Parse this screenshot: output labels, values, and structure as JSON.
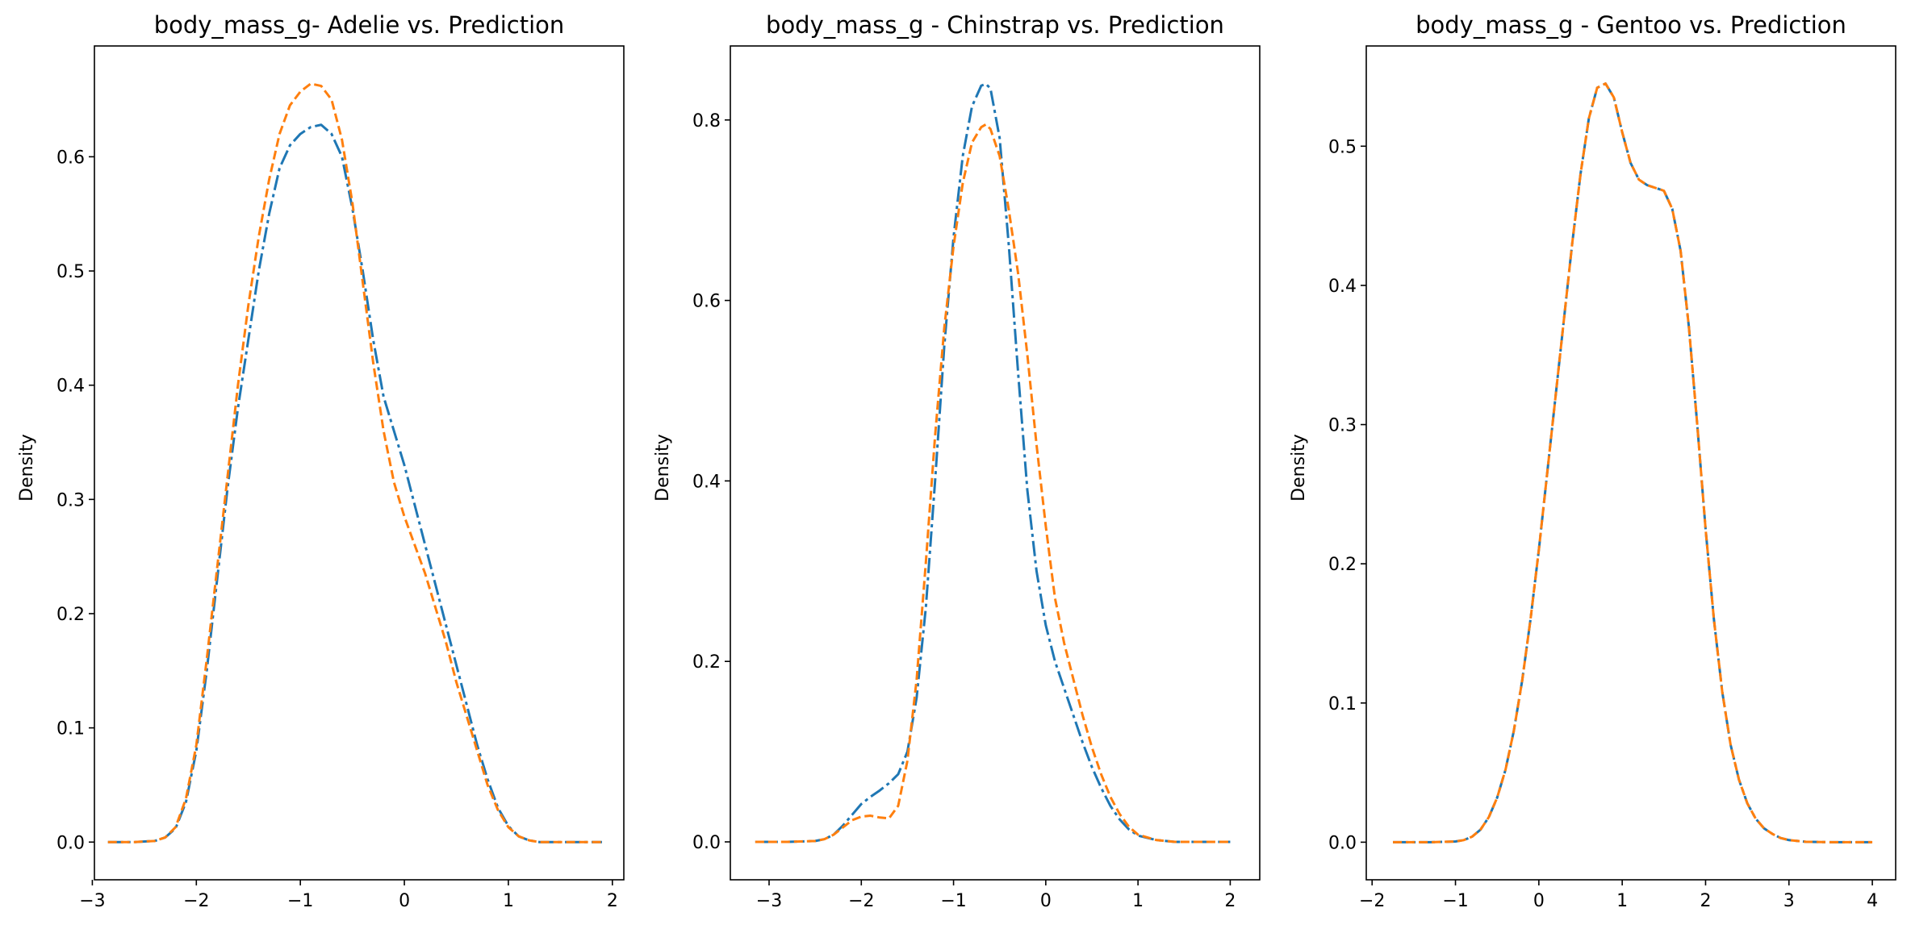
{
  "chart_data": [
    {
      "type": "line",
      "title": "body_mass_g- Adelie vs. Prediction",
      "xlabel": "",
      "ylabel": "Density",
      "xlim": [
        -2.98,
        2.11
      ],
      "ylim": [
        -0.033,
        0.697
      ],
      "xticks": [
        -3,
        -2,
        -1,
        0,
        1,
        2
      ],
      "yticks": [
        0.0,
        0.1,
        0.2,
        0.3,
        0.4,
        0.5,
        0.6
      ],
      "series": [
        {
          "color": "#1f77b4",
          "linestyle": "dashdot",
          "x": [
            -2.85,
            -2.6,
            -2.4,
            -2.3,
            -2.2,
            -2.1,
            -2.0,
            -1.9,
            -1.8,
            -1.7,
            -1.6,
            -1.5,
            -1.4,
            -1.3,
            -1.2,
            -1.1,
            -1.0,
            -0.9,
            -0.8,
            -0.7,
            -0.6,
            -0.5,
            -0.4,
            -0.3,
            -0.2,
            -0.1,
            0.0,
            0.1,
            0.2,
            0.3,
            0.4,
            0.5,
            0.6,
            0.7,
            0.8,
            0.9,
            1.0,
            1.1,
            1.2,
            1.3,
            1.5,
            1.7,
            1.9
          ],
          "y": [
            0.0,
            0.0,
            0.001,
            0.004,
            0.012,
            0.035,
            0.08,
            0.15,
            0.23,
            0.31,
            0.38,
            0.44,
            0.5,
            0.55,
            0.59,
            0.61,
            0.62,
            0.626,
            0.628,
            0.62,
            0.6,
            0.555,
            0.5,
            0.44,
            0.39,
            0.36,
            0.33,
            0.295,
            0.26,
            0.225,
            0.19,
            0.155,
            0.12,
            0.085,
            0.055,
            0.03,
            0.014,
            0.005,
            0.0015,
            0.0,
            0.0,
            0.0,
            0.0
          ]
        },
        {
          "color": "#ff7f0e",
          "linestyle": "dashed",
          "x": [
            -2.85,
            -2.6,
            -2.4,
            -2.3,
            -2.2,
            -2.1,
            -2.0,
            -1.9,
            -1.8,
            -1.7,
            -1.6,
            -1.5,
            -1.4,
            -1.3,
            -1.2,
            -1.1,
            -1.0,
            -0.9,
            -0.8,
            -0.7,
            -0.6,
            -0.5,
            -0.4,
            -0.3,
            -0.2,
            -0.1,
            0.0,
            0.1,
            0.2,
            0.3,
            0.4,
            0.5,
            0.6,
            0.7,
            0.8,
            0.9,
            1.0,
            1.1,
            1.2,
            1.3,
            1.5,
            1.7,
            1.9
          ],
          "y": [
            0.0,
            0.0,
            0.001,
            0.004,
            0.013,
            0.038,
            0.085,
            0.16,
            0.24,
            0.32,
            0.4,
            0.47,
            0.53,
            0.58,
            0.62,
            0.645,
            0.657,
            0.664,
            0.662,
            0.65,
            0.615,
            0.56,
            0.49,
            0.42,
            0.36,
            0.315,
            0.285,
            0.26,
            0.235,
            0.205,
            0.175,
            0.14,
            0.11,
            0.08,
            0.05,
            0.028,
            0.013,
            0.005,
            0.0015,
            0.0,
            0.0,
            0.0,
            0.0
          ]
        }
      ]
    },
    {
      "type": "line",
      "title": "body_mass_g - Chinstrap vs. Prediction",
      "xlabel": "",
      "ylabel": "Density",
      "xlim": [
        -3.42,
        2.32
      ],
      "ylim": [
        -0.042,
        0.882
      ],
      "xticks": [
        -3,
        -2,
        -1,
        0,
        1,
        2
      ],
      "yticks": [
        0.0,
        0.2,
        0.4,
        0.6,
        0.8
      ],
      "series": [
        {
          "color": "#1f77b4",
          "linestyle": "dashdot",
          "x": [
            -3.15,
            -2.8,
            -2.5,
            -2.4,
            -2.3,
            -2.2,
            -2.1,
            -2.0,
            -1.9,
            -1.8,
            -1.7,
            -1.6,
            -1.5,
            -1.4,
            -1.3,
            -1.2,
            -1.1,
            -1.0,
            -0.9,
            -0.8,
            -0.7,
            -0.65,
            -0.6,
            -0.5,
            -0.4,
            -0.3,
            -0.2,
            -0.1,
            0.0,
            0.1,
            0.2,
            0.3,
            0.4,
            0.5,
            0.6,
            0.7,
            0.8,
            0.9,
            1.0,
            1.2,
            1.4,
            1.7,
            2.0
          ],
          "y": [
            0.0,
            0.0,
            0.001,
            0.003,
            0.008,
            0.018,
            0.03,
            0.042,
            0.05,
            0.057,
            0.065,
            0.075,
            0.1,
            0.16,
            0.26,
            0.4,
            0.55,
            0.67,
            0.76,
            0.815,
            0.838,
            0.84,
            0.835,
            0.78,
            0.66,
            0.52,
            0.39,
            0.3,
            0.24,
            0.2,
            0.17,
            0.14,
            0.11,
            0.083,
            0.06,
            0.04,
            0.025,
            0.014,
            0.007,
            0.002,
            0.0,
            0.0,
            0.0
          ]
        },
        {
          "color": "#ff7f0e",
          "linestyle": "dashed",
          "x": [
            -3.15,
            -2.8,
            -2.5,
            -2.4,
            -2.3,
            -2.2,
            -2.1,
            -2.0,
            -1.9,
            -1.8,
            -1.7,
            -1.6,
            -1.5,
            -1.4,
            -1.3,
            -1.2,
            -1.1,
            -1.0,
            -0.9,
            -0.8,
            -0.7,
            -0.65,
            -0.6,
            -0.5,
            -0.4,
            -0.3,
            -0.2,
            -0.1,
            0.0,
            0.1,
            0.2,
            0.3,
            0.4,
            0.5,
            0.6,
            0.7,
            0.8,
            0.9,
            1.0,
            1.2,
            1.4,
            1.7,
            2.0
          ],
          "y": [
            0.0,
            0.0,
            0.001,
            0.003,
            0.008,
            0.016,
            0.024,
            0.028,
            0.029,
            0.027,
            0.026,
            0.04,
            0.09,
            0.18,
            0.31,
            0.45,
            0.57,
            0.66,
            0.73,
            0.775,
            0.792,
            0.795,
            0.79,
            0.76,
            0.7,
            0.63,
            0.54,
            0.44,
            0.35,
            0.27,
            0.22,
            0.18,
            0.14,
            0.105,
            0.075,
            0.05,
            0.031,
            0.017,
            0.008,
            0.002,
            0.0,
            0.0,
            0.0
          ]
        }
      ]
    },
    {
      "type": "line",
      "title": "body_mass_g - Gentoo vs. Prediction",
      "xlabel": "",
      "ylabel": "Density",
      "xlim": [
        -2.07,
        4.28
      ],
      "ylim": [
        -0.027,
        0.572
      ],
      "xticks": [
        -2,
        -1,
        0,
        1,
        2,
        3,
        4
      ],
      "yticks": [
        0.0,
        0.1,
        0.2,
        0.3,
        0.4,
        0.5
      ],
      "series": [
        {
          "color": "#1f77b4",
          "linestyle": "dashdot",
          "x": [
            -1.75,
            -1.3,
            -1.0,
            -0.9,
            -0.8,
            -0.7,
            -0.6,
            -0.5,
            -0.4,
            -0.3,
            -0.2,
            -0.1,
            0.0,
            0.1,
            0.2,
            0.3,
            0.4,
            0.5,
            0.6,
            0.7,
            0.8,
            0.9,
            1.0,
            1.1,
            1.2,
            1.3,
            1.4,
            1.5,
            1.6,
            1.7,
            1.8,
            1.9,
            2.0,
            2.1,
            2.2,
            2.3,
            2.4,
            2.5,
            2.6,
            2.7,
            2.8,
            2.9,
            3.0,
            3.2,
            3.5,
            4.0
          ],
          "y": [
            0.0,
            0.0,
            0.0005,
            0.0015,
            0.004,
            0.009,
            0.018,
            0.032,
            0.052,
            0.08,
            0.116,
            0.16,
            0.21,
            0.265,
            0.32,
            0.375,
            0.43,
            0.48,
            0.52,
            0.542,
            0.545,
            0.535,
            0.51,
            0.488,
            0.476,
            0.472,
            0.47,
            0.468,
            0.455,
            0.425,
            0.37,
            0.3,
            0.225,
            0.16,
            0.108,
            0.07,
            0.045,
            0.028,
            0.017,
            0.01,
            0.006,
            0.003,
            0.0015,
            0.0003,
            0.0,
            0.0
          ]
        },
        {
          "color": "#ff7f0e",
          "linestyle": "dashed",
          "x": [
            -1.75,
            -1.3,
            -1.0,
            -0.9,
            -0.8,
            -0.7,
            -0.6,
            -0.5,
            -0.4,
            -0.3,
            -0.2,
            -0.1,
            0.0,
            0.1,
            0.2,
            0.3,
            0.4,
            0.5,
            0.6,
            0.7,
            0.8,
            0.9,
            1.0,
            1.1,
            1.2,
            1.3,
            1.4,
            1.5,
            1.6,
            1.7,
            1.8,
            1.9,
            2.0,
            2.1,
            2.2,
            2.3,
            2.4,
            2.5,
            2.6,
            2.7,
            2.8,
            2.9,
            3.0,
            3.2,
            3.5,
            4.0
          ],
          "y": [
            0.0,
            0.0,
            0.0005,
            0.0015,
            0.004,
            0.009,
            0.018,
            0.032,
            0.052,
            0.08,
            0.116,
            0.16,
            0.21,
            0.265,
            0.32,
            0.375,
            0.43,
            0.48,
            0.52,
            0.542,
            0.545,
            0.535,
            0.51,
            0.488,
            0.476,
            0.472,
            0.47,
            0.468,
            0.455,
            0.425,
            0.37,
            0.3,
            0.225,
            0.16,
            0.108,
            0.07,
            0.045,
            0.028,
            0.017,
            0.01,
            0.006,
            0.003,
            0.0015,
            0.0003,
            0.0,
            0.0
          ]
        }
      ]
    }
  ]
}
